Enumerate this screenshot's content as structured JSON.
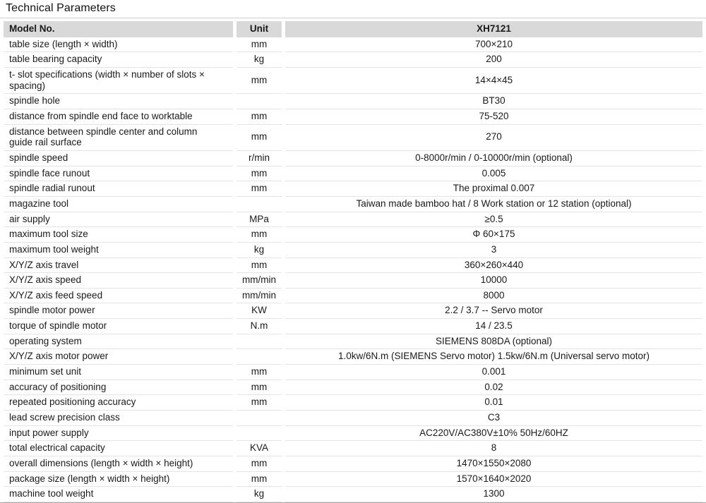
{
  "page_title": "Technical Parameters",
  "colors": {
    "header_bg": "#d9d9d9",
    "row_line": "#e4e4e4",
    "table_top_line": "#d0d0d0",
    "table_bottom_line": "#a8a8a8",
    "text": "#1a1a1a"
  },
  "table": {
    "headers": [
      "Model No.",
      "Unit",
      "XH7121"
    ],
    "rows": [
      {
        "param": "table size (length × width)",
        "unit": "mm",
        "value": "700×210"
      },
      {
        "param": "table bearing capacity",
        "unit": "kg",
        "value": "200"
      },
      {
        "param": "t- slot specifications (width × number of slots × spacing)",
        "unit": "mm",
        "value": "14×4×45"
      },
      {
        "param": "spindle hole",
        "unit": "",
        "value": "BT30"
      },
      {
        "param": "distance from spindle end face to worktable",
        "unit": "mm",
        "value": "75-520"
      },
      {
        "param": "distance between spindle center and column guide rail surface",
        "unit": "mm",
        "value": "270"
      },
      {
        "param": "spindle speed",
        "unit": "r/min",
        "value": "0-8000r/min / 0-10000r/min (optional)"
      },
      {
        "param": "spindle face runout",
        "unit": "mm",
        "value": "0.005"
      },
      {
        "param": "spindle radial runout",
        "unit": "mm",
        "value": "The proximal 0.007"
      },
      {
        "param": "magazine tool",
        "unit": "",
        "value": "Taiwan made bamboo hat / 8 Work station or 12 station (optional)"
      },
      {
        "param": "air supply",
        "unit": "MPa",
        "value": "≥0.5"
      },
      {
        "param": "maximum tool size",
        "unit": "mm",
        "value": "Φ 60×175"
      },
      {
        "param": "maximum tool weight",
        "unit": "kg",
        "value": "3"
      },
      {
        "param": "X/Y/Z axis travel",
        "unit": "mm",
        "value": "360×260×440"
      },
      {
        "param": "X/Y/Z axis speed",
        "unit": "mm/min",
        "value": "10000"
      },
      {
        "param": "X/Y/Z axis feed speed",
        "unit": "mm/min",
        "value": "8000"
      },
      {
        "param": "spindle motor power",
        "unit": "KW",
        "value": "2.2 / 3.7 -- Servo motor"
      },
      {
        "param": "torque of spindle motor",
        "unit": "N.m",
        "value": "14 / 23.5"
      },
      {
        "param": "operating system",
        "unit": "",
        "value": "SIEMENS 808DA (optional)"
      },
      {
        "param": "X/Y/Z axis motor power",
        "unit": "",
        "value": "1.0kw/6N.m (SIEMENS Servo motor) 1.5kw/6N.m (Universal servo motor)"
      },
      {
        "param": "minimum set unit",
        "unit": "mm",
        "value": "0.001"
      },
      {
        "param": "accuracy of positioning",
        "unit": "mm",
        "value": "0.02"
      },
      {
        "param": "repeated positioning accuracy",
        "unit": "mm",
        "value": "0.01"
      },
      {
        "param": "lead screw precision class",
        "unit": "",
        "value": "C3"
      },
      {
        "param": "input power supply",
        "unit": "",
        "value": "AC220V/AC380V±10% 50Hz/60HZ"
      },
      {
        "param": "total electrical capacity",
        "unit": "KVA",
        "value": "8"
      },
      {
        "param": "overall dimensions (length × width × height)",
        "unit": "mm",
        "value": "1470×1550×2080"
      },
      {
        "param": "package size (length × width × height)",
        "unit": "mm",
        "value": "1570×1640×2020"
      },
      {
        "param": "machine tool weight",
        "unit": "kg",
        "value": "1300"
      }
    ]
  }
}
